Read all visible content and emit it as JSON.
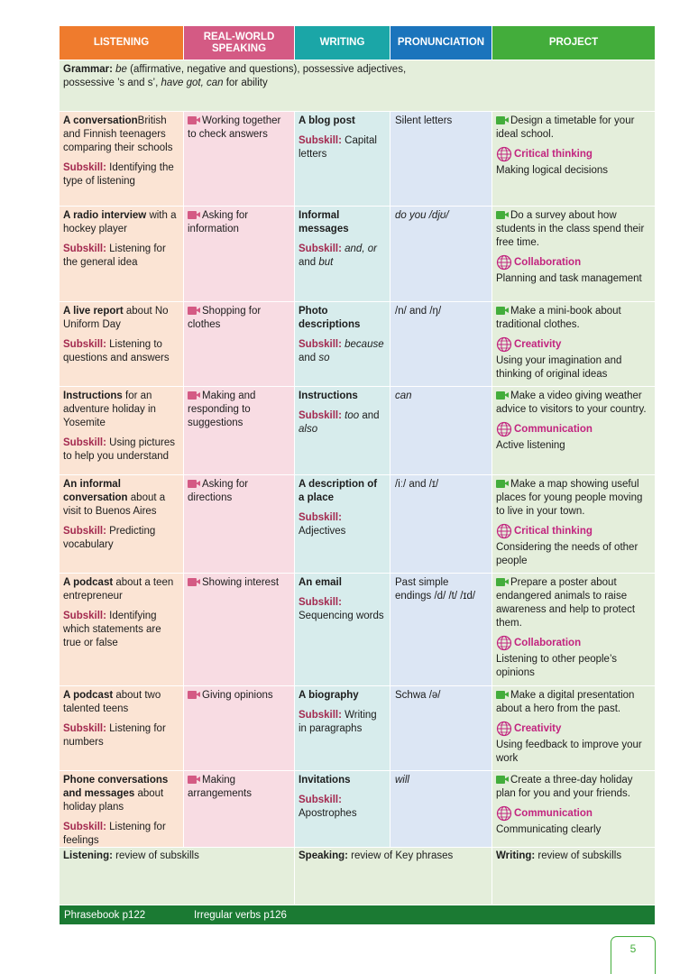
{
  "headers": {
    "listening": "LISTENING",
    "speaking_1": "REAL-WORLD",
    "speaking_2": "SPEAKING",
    "writing": "WRITING",
    "pronunciation": "PRONUNCIATION",
    "project": "PROJECT"
  },
  "grammar": {
    "label": "Grammar:",
    "text_1": " be",
    "text_2": " (affirmative, negative and questions), possessive adjectives,",
    "text_3": "possessive ’s and s’, ",
    "text_4": "have got, can",
    "text_5": " for ability"
  },
  "subskill_label": "Subskill:",
  "rows": [
    {
      "l_bold": "A conversation",
      "l_rest": "British and Finnish teenagers comparing their schools",
      "l_sub": " Identifying the type of listening",
      "s": "Working together to check answers",
      "w_bold": "A blog post",
      "w_sub": " Capital letters",
      "p": "Silent letters",
      "pr": "Design a timetable for your ideal school.",
      "sk": "Critical thinking",
      "sk_d": "Making logical decisions"
    },
    {
      "l_bold": "A radio interview",
      "l_rest": " with a hockey player",
      "l_sub": " Listening for the general idea",
      "s": "Asking for information",
      "w_bold": "Informal messages",
      "w_sub_it": " and, or",
      "w_sub2": " and ",
      "w_sub3": "but",
      "p": "do you /djʊ/",
      "pr": "Do a survey about how students in the class spend their free time.",
      "sk": "Collaboration",
      "sk_d": "Planning and task management"
    },
    {
      "l_bold": "A live report",
      "l_rest": " about No Uniform Day",
      "l_sub": " Listening to questions and answers",
      "s": "Shopping for clothes",
      "w_bold": "Photo descriptions",
      "w_sub_it": " because",
      "w_sub2": " and ",
      "w_sub3": "so",
      "p": "/n/ and /ŋ/",
      "pr": "Make a mini-book about traditional clothes.",
      "sk": "Creativity",
      "sk_d": "Using your imagination and thinking of original ideas"
    },
    {
      "l_bold": "Instructions",
      "l_rest": " for an adventure holiday in Yosemite",
      "l_sub": " Using pictures to help you understand",
      "s": "Making and responding to suggestions",
      "w_bold": "Instructions",
      "w_sub_it": " too",
      "w_sub2": " and ",
      "w_sub3": "also",
      "p": "can",
      "pr": "Make a video giving weather advice to visitors to your country.",
      "sk": "Communication",
      "sk_d": "Active listening"
    },
    {
      "l_bold": "An informal conversation",
      "l_rest": " about a visit to Buenos Aires",
      "l_sub": " Predicting vocabulary",
      "s": "Asking for directions",
      "w_bold": "A description of a place",
      "w_sub": " Adjectives",
      "p": "/iː/ and /ɪ/",
      "pr": "Make a map showing useful places for young people moving to live in your town.",
      "sk": "Critical thinking",
      "sk_d": "Considering the needs of other people"
    },
    {
      "l_bold": "A podcast",
      "l_rest": " about a teen entrepreneur",
      "l_sub": " Identifying which statements are true or false",
      "s": "Showing interest",
      "w_bold": "An email",
      "w_sub": " Sequencing words",
      "p": "Past simple endings /d/ /t/ /ɪd/",
      "pr": "Prepare a poster about endangered animals to raise awareness and help to protect them.",
      "sk": "Collaboration",
      "sk_d": "Listening to other people’s opinions"
    },
    {
      "l_bold": "A podcast",
      "l_rest": " about two talented teens",
      "l_sub": " Listening for numbers",
      "s": "Giving opinions",
      "w_bold": "A biography",
      "w_sub": " Writing in paragraphs",
      "p": "Schwa /ə/",
      "pr": "Make a digital presentation about a hero from the past.",
      "sk": "Creativity",
      "sk_d": "Using feedback to improve your work"
    },
    {
      "l_bold": "Phone conversations and messages",
      "l_rest": " about holiday plans",
      "l_sub": " Listening for feelings",
      "s": "Making arrangements",
      "w_bold": "Invitations",
      "w_sub": " Apostrophes",
      "p": "will",
      "pr": "Create a three-day holiday plan for you and your friends.",
      "sk": "Communication",
      "sk_d": "Communicating clearly"
    }
  ],
  "review": {
    "l_b": "Listening:",
    "l_t": " review of subskills",
    "s_b": "Speaking:",
    "s_t": " review of Key phrases",
    "w_b": "Writing:",
    "w_t": " review of subskills"
  },
  "footer": {
    "phrasebook": "Phrasebook p122",
    "verbs": "Irregular verbs p126"
  },
  "page_number": "5",
  "colors": {
    "listening": "#ef7b2d",
    "speaking": "#d45a84",
    "writing": "#1ba6a7",
    "pronunciation": "#1b74bc",
    "project": "#43ad3b",
    "footer": "#1b7a33"
  }
}
